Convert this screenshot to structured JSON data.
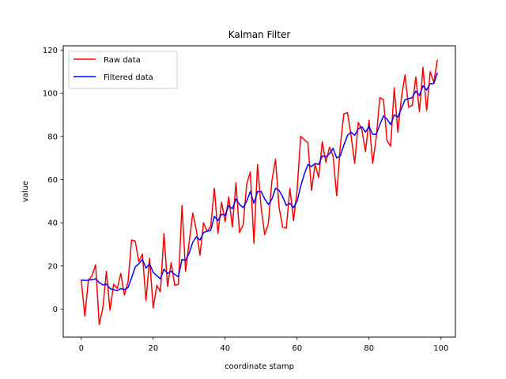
{
  "chart_data": {
    "type": "line",
    "title": "Kalman Filter",
    "xlabel": "coordinate stamp",
    "ylabel": "value",
    "xlim": [
      -5,
      104
    ],
    "ylim": [
      -13,
      122
    ],
    "xticks": [
      0,
      20,
      40,
      60,
      80,
      100
    ],
    "yticks": [
      0,
      20,
      40,
      60,
      80,
      100,
      120
    ],
    "grid": false,
    "legend_position": "top-left",
    "x": [
      0,
      1,
      2,
      3,
      4,
      5,
      6,
      7,
      8,
      9,
      10,
      11,
      12,
      13,
      14,
      15,
      16,
      17,
      18,
      19,
      20,
      21,
      22,
      23,
      24,
      25,
      26,
      27,
      28,
      29,
      30,
      31,
      32,
      33,
      34,
      35,
      36,
      37,
      38,
      39,
      40,
      41,
      42,
      43,
      44,
      45,
      46,
      47,
      48,
      49,
      50,
      51,
      52,
      53,
      54,
      55,
      56,
      57,
      58,
      59,
      60,
      61,
      62,
      63,
      64,
      65,
      66,
      67,
      68,
      69,
      70,
      71,
      72,
      73,
      74,
      75,
      76,
      77,
      78,
      79,
      80,
      81,
      82,
      83,
      84,
      85,
      86,
      87,
      88,
      89,
      90,
      91,
      92,
      93,
      94,
      95,
      96,
      97,
      98,
      99
    ],
    "series": [
      {
        "name": "Raw data",
        "color": "#ff0000",
        "values": [
          13.5,
          -3.2,
          13.5,
          15.5,
          20.5,
          -7.2,
          0.5,
          17.5,
          -0.5,
          11.5,
          9.5,
          16.5,
          6.5,
          12.5,
          32.0,
          31.5,
          22.0,
          25.5,
          4.0,
          23.5,
          0.5,
          11.0,
          8.0,
          35.0,
          10.5,
          21.5,
          11.0,
          11.5,
          48.0,
          17.5,
          31.0,
          44.5,
          36.5,
          25.0,
          40.0,
          36.0,
          38.5,
          56.0,
          35.0,
          49.5,
          40.5,
          52.0,
          38.0,
          58.5,
          35.5,
          39.0,
          58.0,
          63.5,
          30.5,
          67.0,
          47.0,
          34.5,
          39.5,
          59.5,
          69.5,
          47.0,
          38.0,
          37.5,
          56.0,
          41.0,
          55.0,
          80.0,
          78.5,
          77.0,
          55.0,
          67.0,
          61.0,
          77.5,
          68.0,
          75.0,
          71.0,
          52.5,
          75.5,
          90.5,
          91.0,
          80.5,
          67.5,
          86.5,
          83.0,
          73.0,
          87.5,
          67.5,
          79.5,
          98.0,
          97.0,
          78.0,
          75.5,
          102.5,
          82.0,
          98.0,
          108.5,
          93.5,
          94.5,
          107.5,
          91.5,
          112.0,
          92.0,
          110.0,
          105.0,
          115.5
        ]
      },
      {
        "name": "Filtered data",
        "color": "#0000ff",
        "values": [
          13.5,
          13.3,
          13.4,
          13.7,
          14.0,
          12.3,
          11.2,
          11.6,
          9.5,
          9.0,
          8.6,
          9.5,
          9.0,
          10.0,
          14.5,
          19.5,
          21.0,
          23.0,
          19.0,
          21.0,
          17.0,
          15.5,
          14.0,
          18.5,
          16.5,
          17.5,
          16.0,
          15.0,
          23.0,
          22.5,
          26.0,
          31.0,
          33.5,
          32.0,
          35.5,
          36.0,
          36.5,
          43.0,
          41.0,
          44.0,
          43.5,
          48.0,
          46.5,
          51.0,
          48.5,
          47.0,
          50.0,
          54.5,
          49.0,
          54.5,
          54.5,
          51.0,
          48.5,
          51.0,
          56.0,
          55.0,
          52.0,
          48.0,
          49.0,
          47.0,
          50.0,
          57.0,
          62.5,
          67.0,
          66.0,
          67.5,
          67.0,
          71.0,
          70.5,
          72.0,
          74.5,
          70.0,
          71.0,
          76.0,
          80.5,
          82.0,
          80.5,
          83.5,
          84.5,
          82.0,
          84.5,
          81.0,
          81.0,
          85.5,
          89.5,
          88.0,
          85.5,
          90.0,
          89.0,
          93.0,
          97.0,
          97.5,
          98.0,
          101.0,
          99.0,
          103.5,
          101.5,
          104.5,
          104.5,
          109.5
        ]
      }
    ]
  }
}
